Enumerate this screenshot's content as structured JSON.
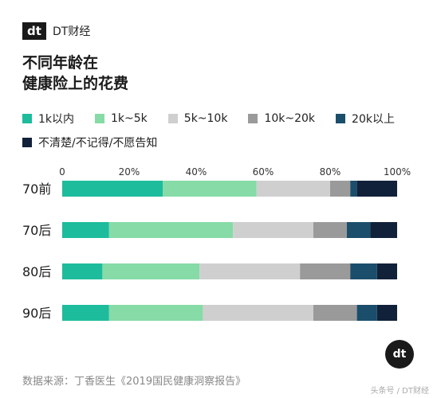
{
  "brand": {
    "logo_text": "dt",
    "name": "DT财经"
  },
  "title_lines": [
    "不同年龄在",
    "健康险上的花费"
  ],
  "source": "数据来源：丁香医生《2019国民健康洞察报告》",
  "corner": {
    "logo_text": "dt",
    "text": "头条号 / DT财经"
  },
  "chart_data": {
    "type": "bar",
    "orientation": "horizontal",
    "stacked": true,
    "categories": [
      "70前",
      "70后",
      "80后",
      "90后"
    ],
    "x_ticks": [
      "0",
      "20%",
      "40%",
      "60%",
      "80%",
      "100%"
    ],
    "xlim": [
      0,
      100
    ],
    "series": [
      {
        "name": "1k以内",
        "color": "#1dbc9c",
        "values": [
          30,
          14,
          12,
          14
        ]
      },
      {
        "name": "1k~5k",
        "color": "#86dba6",
        "values": [
          28,
          37,
          29,
          28
        ]
      },
      {
        "name": "5k~10k",
        "color": "#cfcfcf",
        "values": [
          22,
          24,
          30,
          33
        ]
      },
      {
        "name": "10k~20k",
        "color": "#9a9a9a",
        "values": [
          6,
          10,
          15,
          13
        ]
      },
      {
        "name": "20k以上",
        "color": "#1b4e6b",
        "values": [
          2,
          7,
          8,
          6
        ]
      },
      {
        "name": "不清楚/不记得/不愿告知",
        "color": "#12213a",
        "values": [
          12,
          8,
          6,
          6
        ]
      }
    ],
    "grid": false,
    "legend_position": "top"
  }
}
